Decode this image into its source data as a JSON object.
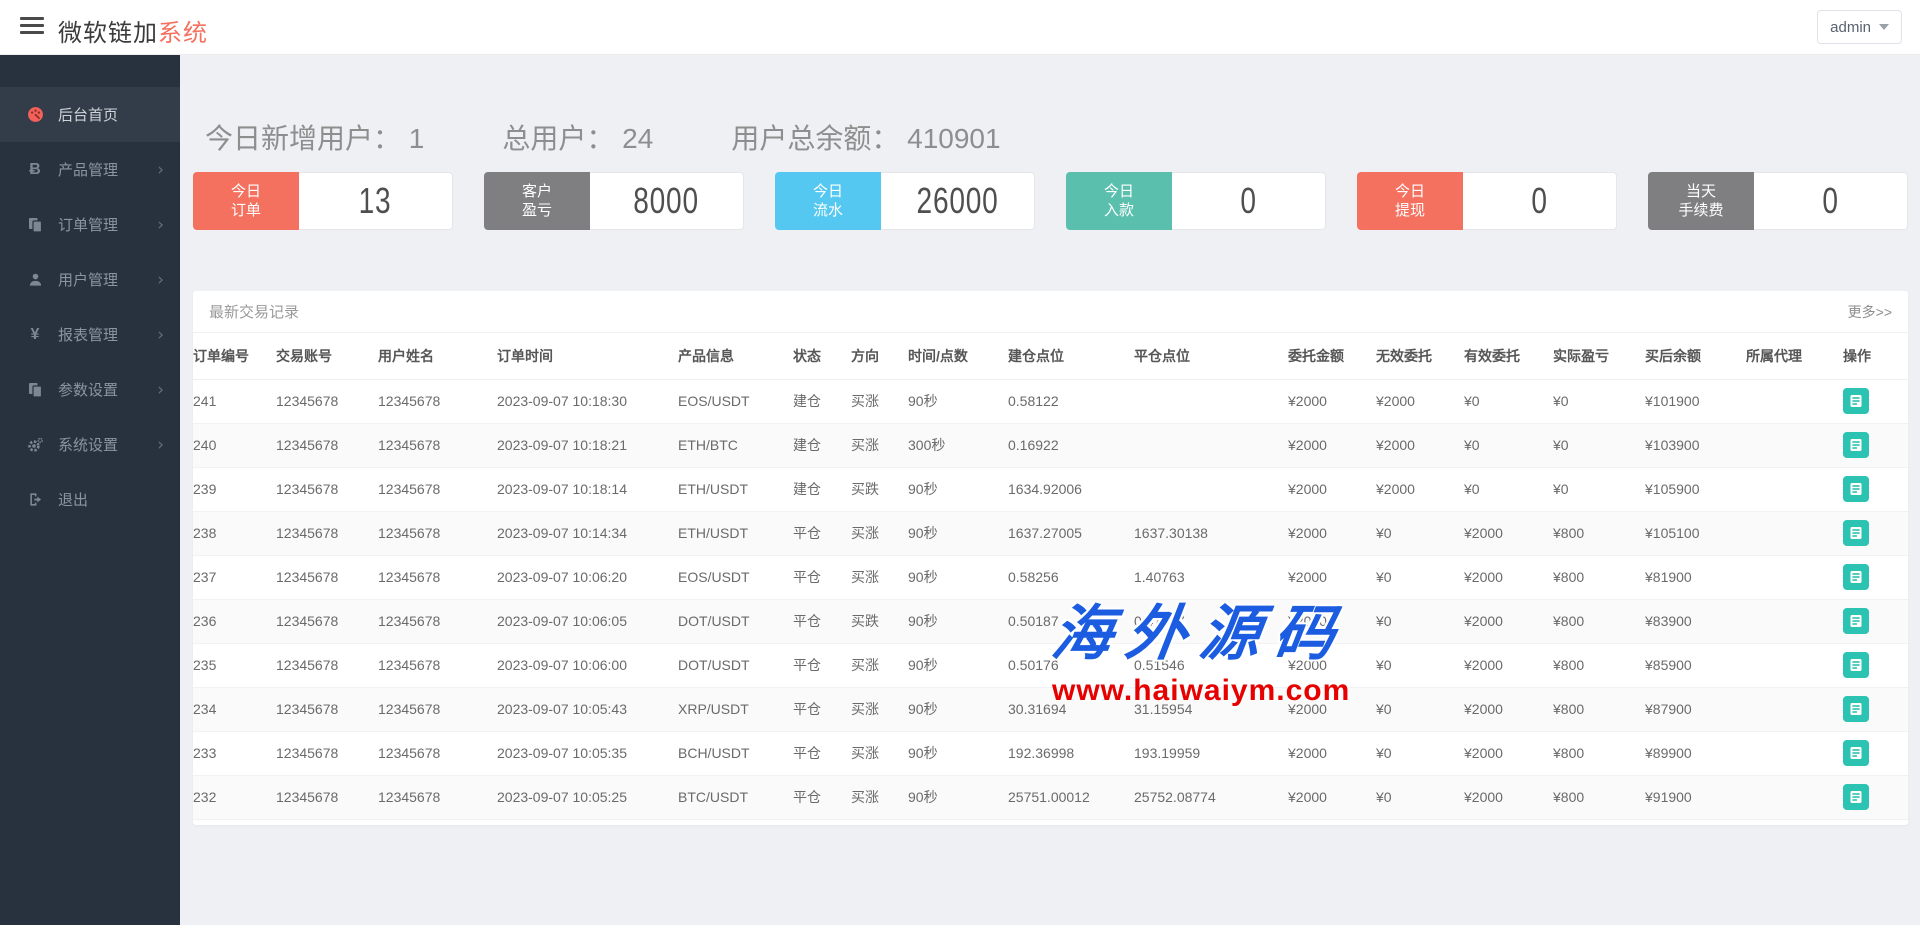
{
  "header": {
    "title_main": "微软链加",
    "title_accent": "系统",
    "user": "admin"
  },
  "sidebar": {
    "items": [
      {
        "label": "后台首页",
        "icon": "dashboard-icon",
        "active": true,
        "has_children": false
      },
      {
        "label": "产品管理",
        "icon": "bitcoin-icon",
        "active": false,
        "has_children": true
      },
      {
        "label": "订单管理",
        "icon": "orders-icon",
        "active": false,
        "has_children": true
      },
      {
        "label": "用户管理",
        "icon": "users-icon",
        "active": false,
        "has_children": true
      },
      {
        "label": "报表管理",
        "icon": "yen-icon",
        "active": false,
        "has_children": true
      },
      {
        "label": "参数设置",
        "icon": "params-icon",
        "active": false,
        "has_children": true
      },
      {
        "label": "系统设置",
        "icon": "settings-icon",
        "active": false,
        "has_children": true
      },
      {
        "label": "退出",
        "icon": "logout-icon",
        "active": false,
        "has_children": false
      }
    ],
    "arrow_glyph": "›"
  },
  "stats": [
    {
      "label": "今日新增用户：",
      "value": "1"
    },
    {
      "label": "总用户：",
      "value": "24"
    },
    {
      "label": "用户总余额：",
      "value": "410901"
    }
  ],
  "cards": [
    {
      "line1": "今日",
      "line2": "订单",
      "value": "13",
      "color": "#f4715f"
    },
    {
      "line1": "客户",
      "line2": "盈亏",
      "value": "8000",
      "color": "#7f7f81"
    },
    {
      "line1": "今日",
      "line2": "流水",
      "value": "26000",
      "color": "#54c8f0"
    },
    {
      "line1": "今日",
      "line2": "入款",
      "value": "0",
      "color": "#5bbfae"
    },
    {
      "line1": "今日",
      "line2": "提现",
      "value": "0",
      "color": "#f4715f"
    },
    {
      "line1": "当天",
      "line2": "手续费",
      "value": "0",
      "color": "#7f7f81"
    }
  ],
  "table": {
    "title": "最新交易记录",
    "more": "更多>>",
    "columns": [
      "订单编号",
      "交易账号",
      "用户姓名",
      "订单时间",
      "产品信息",
      "状态",
      "方向",
      "时间/点数",
      "建仓点位",
      "平仓点位",
      "委托金额",
      "无效委托",
      "有效委托",
      "实际盈亏",
      "买后余额",
      "所属代理",
      "操作"
    ],
    "rows": [
      {
        "id": "241",
        "account": "12345678",
        "name": "12345678",
        "time": "2023-09-07 10:18:30",
        "product": "EOS/USDT",
        "status": "建仓",
        "direction": "买涨",
        "dir": "up",
        "duration": "90秒",
        "open": "0.58122",
        "close": "",
        "close_color": "",
        "entrust": "¥2000",
        "invalid": "¥2000",
        "valid": "¥0",
        "profit": "¥0",
        "profit_color": "green",
        "balance": "¥101900",
        "agent": ""
      },
      {
        "id": "240",
        "account": "12345678",
        "name": "12345678",
        "time": "2023-09-07 10:18:21",
        "product": "ETH/BTC",
        "status": "建仓",
        "direction": "买涨",
        "dir": "up",
        "duration": "300秒",
        "open": "0.16922",
        "close": "",
        "close_color": "",
        "entrust": "¥2000",
        "invalid": "¥2000",
        "valid": "¥0",
        "profit": "¥0",
        "profit_color": "green",
        "balance": "¥103900",
        "agent": ""
      },
      {
        "id": "239",
        "account": "12345678",
        "name": "12345678",
        "time": "2023-09-07 10:18:14",
        "product": "ETH/USDT",
        "status": "建仓",
        "direction": "买跌",
        "dir": "down",
        "duration": "90秒",
        "open": "1634.92006",
        "close": "",
        "close_color": "",
        "entrust": "¥2000",
        "invalid": "¥2000",
        "valid": "¥0",
        "profit": "¥0",
        "profit_color": "green",
        "balance": "¥105900",
        "agent": ""
      },
      {
        "id": "238",
        "account": "12345678",
        "name": "12345678",
        "time": "2023-09-07 10:14:34",
        "product": "ETH/USDT",
        "status": "平仓",
        "direction": "买涨",
        "dir": "up",
        "duration": "90秒",
        "open": "1637.27005",
        "close": "1637.30138",
        "close_color": "red",
        "entrust": "¥2000",
        "invalid": "¥0",
        "valid": "¥2000",
        "profit": "¥800",
        "profit_color": "red",
        "balance": "¥105100",
        "agent": ""
      },
      {
        "id": "237",
        "account": "12345678",
        "name": "12345678",
        "time": "2023-09-07 10:06:20",
        "product": "EOS/USDT",
        "status": "平仓",
        "direction": "买涨",
        "dir": "up",
        "duration": "90秒",
        "open": "0.58256",
        "close": "1.40763",
        "close_color": "red",
        "entrust": "¥2000",
        "invalid": "¥0",
        "valid": "¥2000",
        "profit": "¥800",
        "profit_color": "red",
        "balance": "¥81900",
        "agent": ""
      },
      {
        "id": "236",
        "account": "12345678",
        "name": "12345678",
        "time": "2023-09-07 10:06:05",
        "product": "DOT/USDT",
        "status": "平仓",
        "direction": "买跌",
        "dir": "down",
        "duration": "90秒",
        "open": "0.50187",
        "close": "0.47977",
        "close_color": "green",
        "entrust": "¥2000",
        "invalid": "¥0",
        "valid": "¥2000",
        "profit": "¥800",
        "profit_color": "red",
        "balance": "¥83900",
        "agent": ""
      },
      {
        "id": "235",
        "account": "12345678",
        "name": "12345678",
        "time": "2023-09-07 10:06:00",
        "product": "DOT/USDT",
        "status": "平仓",
        "direction": "买涨",
        "dir": "up",
        "duration": "90秒",
        "open": "0.50176",
        "close": "0.51546",
        "close_color": "red",
        "entrust": "¥2000",
        "invalid": "¥0",
        "valid": "¥2000",
        "profit": "¥800",
        "profit_color": "red",
        "balance": "¥85900",
        "agent": ""
      },
      {
        "id": "234",
        "account": "12345678",
        "name": "12345678",
        "time": "2023-09-07 10:05:43",
        "product": "XRP/USDT",
        "status": "平仓",
        "direction": "买涨",
        "dir": "up",
        "duration": "90秒",
        "open": "30.31694",
        "close": "31.15954",
        "close_color": "red",
        "entrust": "¥2000",
        "invalid": "¥0",
        "valid": "¥2000",
        "profit": "¥800",
        "profit_color": "red",
        "balance": "¥87900",
        "agent": ""
      },
      {
        "id": "233",
        "account": "12345678",
        "name": "12345678",
        "time": "2023-09-07 10:05:35",
        "product": "BCH/USDT",
        "status": "平仓",
        "direction": "买涨",
        "dir": "up",
        "duration": "90秒",
        "open": "192.36998",
        "close": "193.19959",
        "close_color": "red",
        "entrust": "¥2000",
        "invalid": "¥0",
        "valid": "¥2000",
        "profit": "¥800",
        "profit_color": "red",
        "balance": "¥89900",
        "agent": ""
      },
      {
        "id": "232",
        "account": "12345678",
        "name": "12345678",
        "time": "2023-09-07 10:05:25",
        "product": "BTC/USDT",
        "status": "平仓",
        "direction": "买涨",
        "dir": "up",
        "duration": "90秒",
        "open": "25751.00012",
        "close": "25752.08774",
        "close_color": "red",
        "entrust": "¥2000",
        "invalid": "¥0",
        "valid": "¥2000",
        "profit": "¥800",
        "profit_color": "red",
        "balance": "¥91900",
        "agent": ""
      }
    ]
  },
  "watermark": {
    "line1": "海外源码",
    "line2": "www.haiwaiym.com"
  },
  "colors": {
    "accent_red": "#f4715f",
    "money_red": "#f50000",
    "money_green": "#0ca00c",
    "action_teal": "#2cc3b3",
    "sidebar_bg": "#28323e"
  }
}
